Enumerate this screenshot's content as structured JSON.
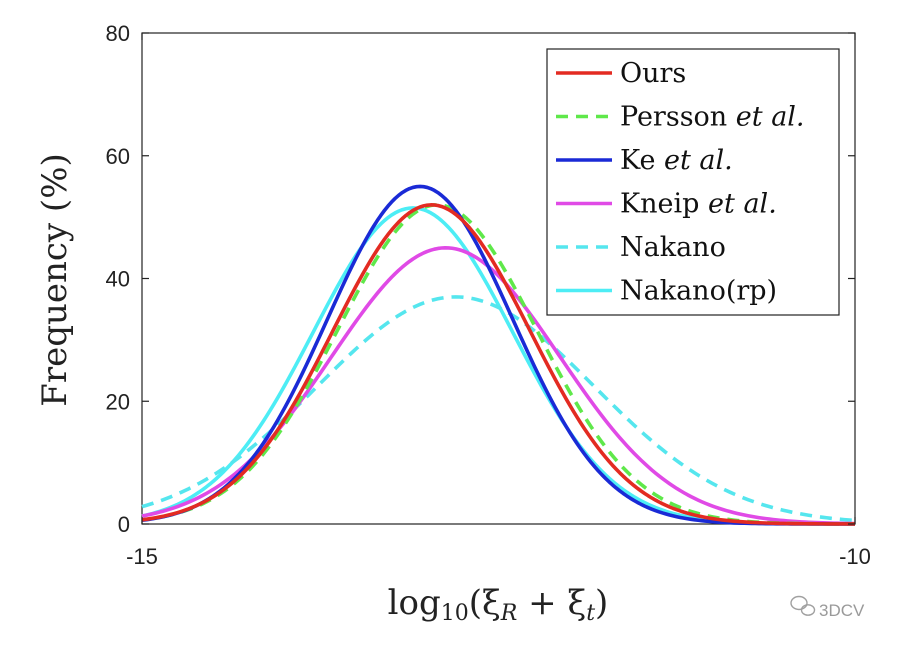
{
  "chart_data": {
    "type": "line",
    "title": "",
    "xlabel": "log10(ξR + ξt)",
    "ylabel": "Frequency (%)",
    "xlim": [
      -15,
      -10
    ],
    "ylim": [
      0,
      80
    ],
    "xticks": [
      -15,
      -10
    ],
    "yticks": [
      0,
      20,
      40,
      60,
      80
    ],
    "grid": false,
    "legend_position": "top-right",
    "series": [
      {
        "name": "Ours",
        "style": "solid",
        "color": "#e32b22",
        "mean": -12.97,
        "sd": 0.69,
        "peak": 52
      },
      {
        "name": "Persson et al.",
        "style": "dashed",
        "color": "#5fe84a",
        "mean": -12.93,
        "sd": 0.7,
        "peak": 52
      },
      {
        "name": "Ke et al.",
        "style": "solid",
        "color": "#1a2ad6",
        "mean": -13.05,
        "sd": 0.65,
        "peak": 55
      },
      {
        "name": "Kneip et al.",
        "style": "solid",
        "color": "#e04ae6",
        "mean": -12.87,
        "sd": 0.8,
        "peak": 45
      },
      {
        "name": "Nakano",
        "style": "dashed",
        "color": "#55e6ee",
        "mean": -12.8,
        "sd": 0.97,
        "peak": 37
      },
      {
        "name": "Nakano(rp)",
        "style": "solid",
        "color": "#4dedf5",
        "mean": -13.1,
        "sd": 0.7,
        "peak": 51.5
      }
    ],
    "legend": [
      {
        "label": "Ours",
        "suffix": ""
      },
      {
        "label": "Persson ",
        "suffix": "et al."
      },
      {
        "label": "Ke ",
        "suffix": "et al."
      },
      {
        "label": "Kneip ",
        "suffix": "et al."
      },
      {
        "label": "Nakano",
        "suffix": ""
      },
      {
        "label": "Nakano(rp)",
        "suffix": ""
      }
    ]
  },
  "watermark": {
    "text": "3DCV",
    "icon": "wechat-icon"
  }
}
